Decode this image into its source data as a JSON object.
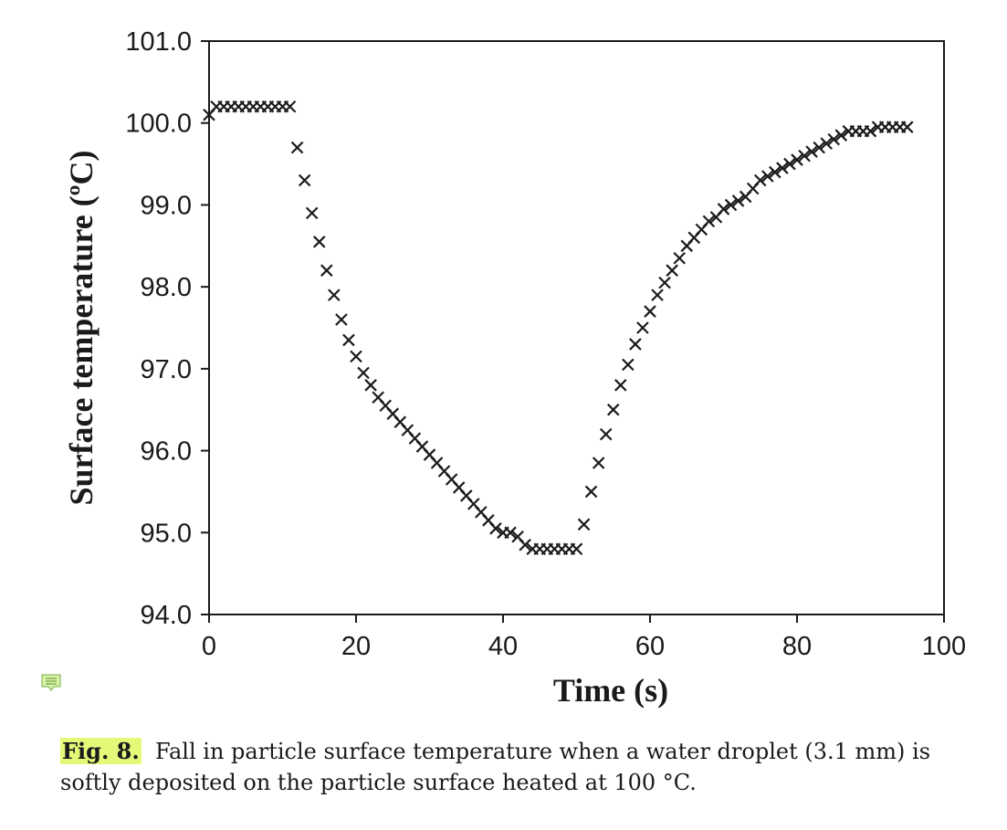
{
  "chart_data": {
    "type": "scatter",
    "marker": "x",
    "xlabel": "Time (s)",
    "ylabel": "Surface  temperature (ºC)",
    "xlim": [
      0,
      100
    ],
    "ylim": [
      94.0,
      101.0
    ],
    "xticks": [
      "0",
      "20",
      "40",
      "60",
      "80",
      "100"
    ],
    "yticks": [
      "94.0",
      "95.0",
      "96.0",
      "97.0",
      "98.0",
      "99.0",
      "100.0",
      "101.0"
    ],
    "grid": false,
    "series": [
      {
        "color": "#1a1a1a",
        "x": [
          0,
          1,
          2,
          3,
          4,
          5,
          6,
          7,
          8,
          9,
          10,
          11,
          12,
          13,
          14,
          15,
          16,
          17,
          18,
          19,
          20,
          21,
          22,
          23,
          24,
          25,
          26,
          27,
          28,
          29,
          30,
          31,
          32,
          33,
          34,
          35,
          36,
          37,
          38,
          39,
          40,
          41,
          42,
          43,
          44,
          45,
          46,
          47,
          48,
          49,
          50,
          51,
          52,
          53,
          54,
          55,
          56,
          57,
          58,
          59,
          60,
          61,
          62,
          63,
          64,
          65,
          66,
          67,
          68,
          69,
          70,
          71,
          72,
          73,
          74,
          75,
          76,
          77,
          78,
          79,
          80,
          81,
          82,
          83,
          84,
          85,
          86,
          87,
          88,
          89,
          90,
          91,
          92,
          93,
          94,
          95
        ],
        "y": [
          100.1,
          100.2,
          100.2,
          100.2,
          100.2,
          100.2,
          100.2,
          100.2,
          100.2,
          100.2,
          100.2,
          100.2,
          99.7,
          99.3,
          98.9,
          98.55,
          98.2,
          97.9,
          97.6,
          97.35,
          97.15,
          96.95,
          96.8,
          96.65,
          96.55,
          96.45,
          96.35,
          96.25,
          96.15,
          96.05,
          95.95,
          95.85,
          95.75,
          95.65,
          95.55,
          95.45,
          95.35,
          95.25,
          95.15,
          95.05,
          95.0,
          95.0,
          94.95,
          94.85,
          94.8,
          94.8,
          94.8,
          94.8,
          94.8,
          94.8,
          94.8,
          95.1,
          95.5,
          95.85,
          96.2,
          96.5,
          96.8,
          97.05,
          97.3,
          97.5,
          97.7,
          97.9,
          98.05,
          98.2,
          98.35,
          98.5,
          98.6,
          98.7,
          98.8,
          98.85,
          98.95,
          99.0,
          99.05,
          99.1,
          99.2,
          99.3,
          99.35,
          99.4,
          99.45,
          99.5,
          99.55,
          99.6,
          99.65,
          99.7,
          99.75,
          99.8,
          99.85,
          99.9,
          99.9,
          99.9,
          99.9,
          99.95,
          99.95,
          99.95,
          99.95,
          99.95
        ]
      }
    ]
  },
  "caption": {
    "label": "Fig. 8.",
    "text": "Fall in particle surface temperature when a water droplet (3.1 mm) is softly deposited on the particle surface heated at 100 °C."
  },
  "icons": {
    "note": "comment-icon"
  }
}
